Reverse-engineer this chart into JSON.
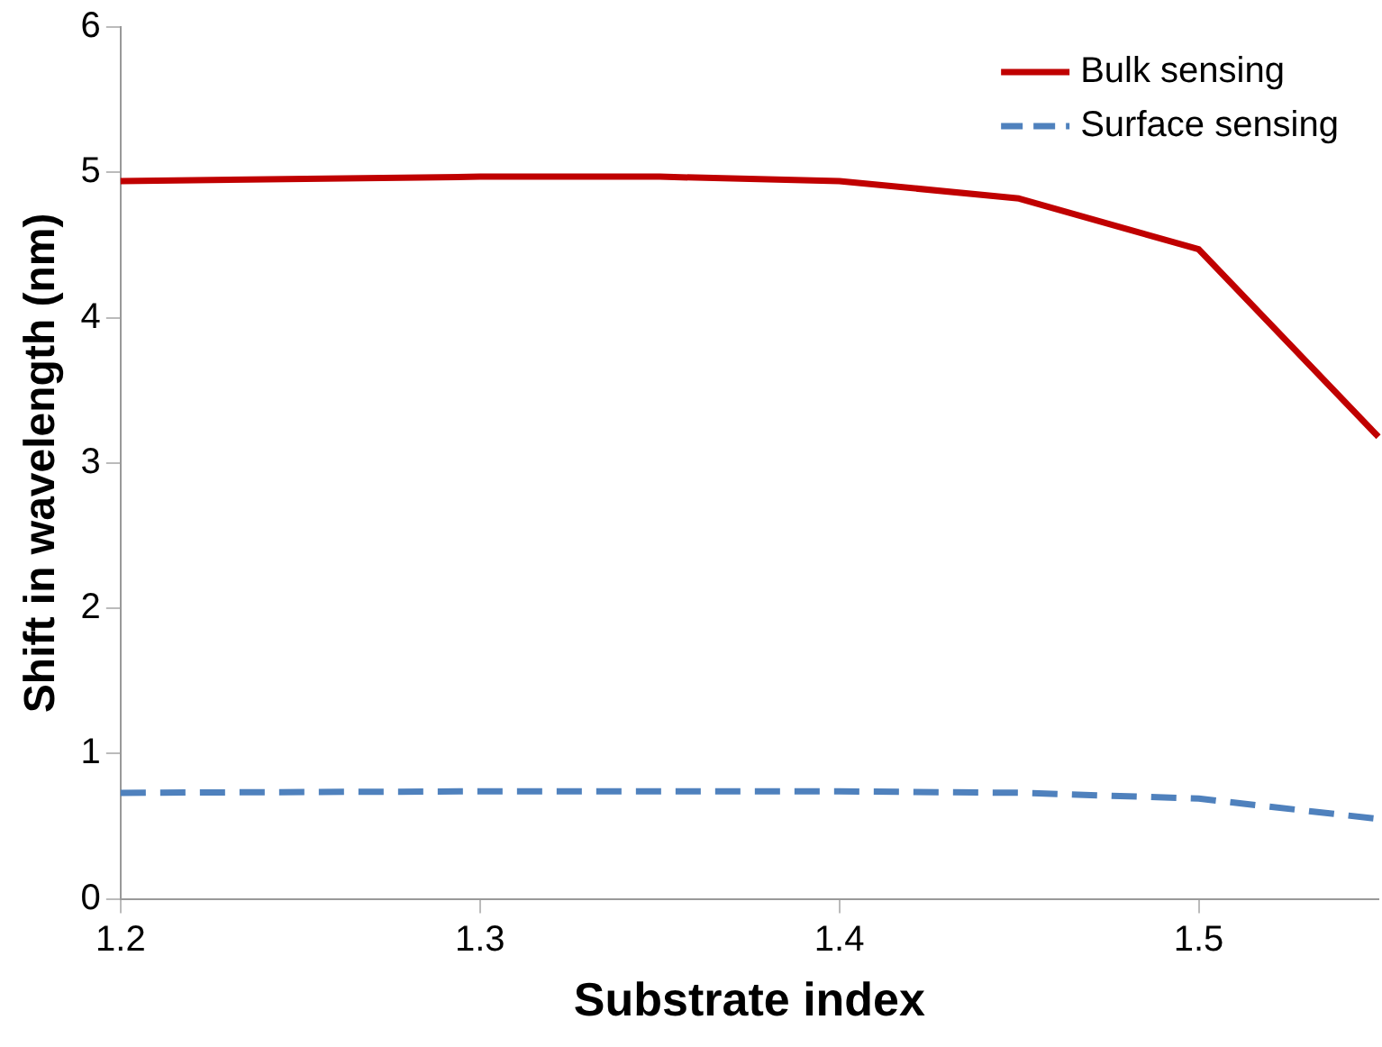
{
  "chart_data": {
    "type": "line",
    "xlabel": "Substrate index",
    "ylabel": "Shift in wavelength (nm)",
    "x": [
      1.2,
      1.3,
      1.35,
      1.4,
      1.45,
      1.5,
      1.55
    ],
    "series": [
      {
        "name": "Bulk sensing",
        "color": "#c00000",
        "values": [
          4.94,
          4.97,
          4.97,
          4.94,
          4.82,
          4.47,
          3.18
        ],
        "line_style": "solid"
      },
      {
        "name": "Surface sensing",
        "color": "#4f81bd",
        "values": [
          0.73,
          0.74,
          0.74,
          0.74,
          0.73,
          0.69,
          0.55
        ],
        "line_style": "dashed"
      }
    ],
    "xlim": [
      1.2,
      1.55
    ],
    "xticks": [
      1.2,
      1.3,
      1.4,
      1.5
    ],
    "ylim": [
      0,
      6
    ],
    "yticks": [
      0,
      1,
      2,
      3,
      4,
      5,
      6
    ],
    "grid": false,
    "legend": "top right",
    "marker": "none"
  }
}
